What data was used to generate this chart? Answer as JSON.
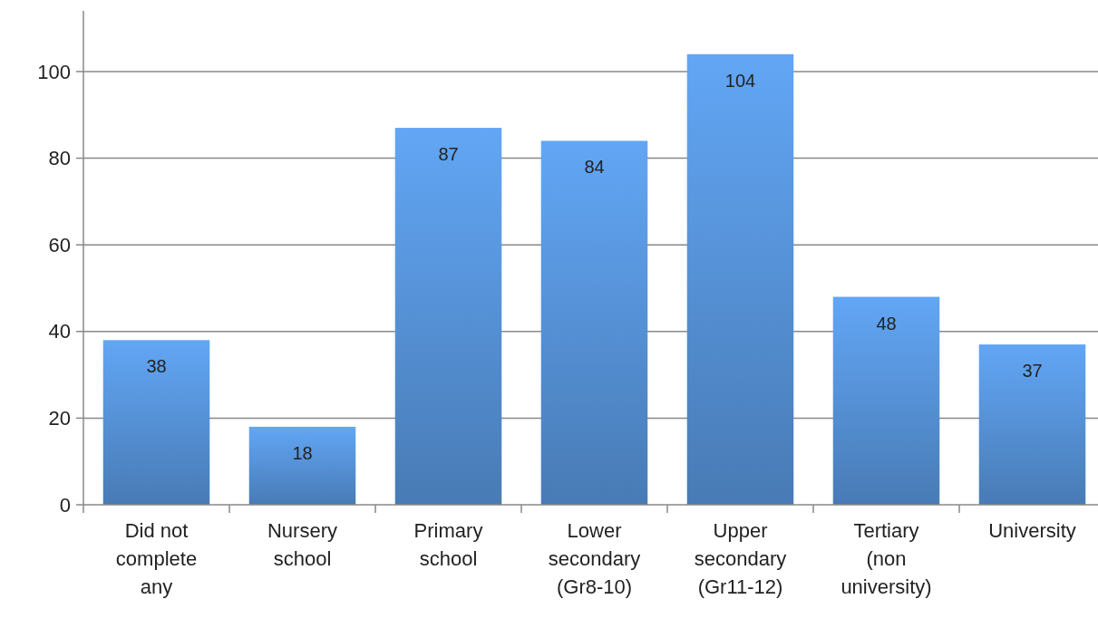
{
  "chart_data": {
    "type": "bar",
    "categories": [
      "Did not complete any",
      "Nursery school",
      "Primary school",
      "Lower secondary (Gr8-10)",
      "Upper secondary (Gr11-12)",
      "Tertiary (non university)",
      "University"
    ],
    "values": [
      38,
      18,
      87,
      84,
      104,
      48,
      37
    ],
    "color": "#4f86c6",
    "ylim": [
      0,
      114
    ],
    "yticks": [
      0,
      20,
      40,
      60,
      80,
      100
    ],
    "grid": "y",
    "data_labels": true
  }
}
